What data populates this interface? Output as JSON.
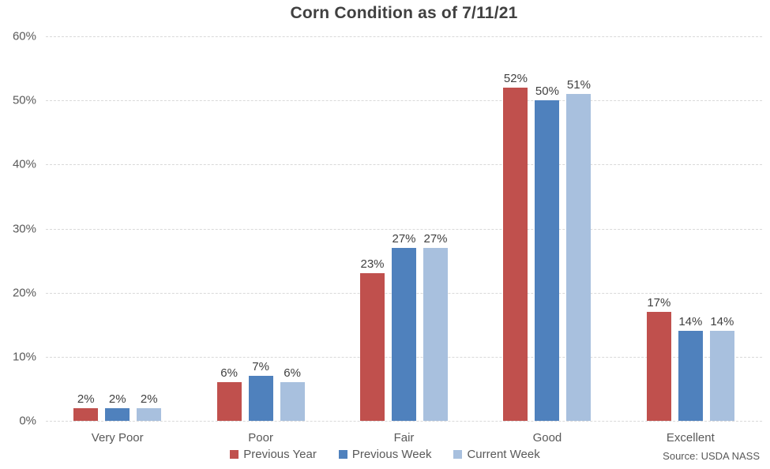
{
  "title": "Corn Condition as of 7/11/21",
  "source": "Source: USDA NASS",
  "colors": {
    "background": "#FFFFFF",
    "title_text": "#404040",
    "data_label_text": "#404040",
    "axis_text": "#595959",
    "gridline": "#D9D9D9",
    "previous_year": "#C0504D",
    "previous_week": "#4F81BD",
    "current_week": "#A8C0DE"
  },
  "chart_data": {
    "type": "bar",
    "title": "Corn Condition as of 7/11/21",
    "categories": [
      "Very Poor",
      "Poor",
      "Fair",
      "Good",
      "Excellent"
    ],
    "series": [
      {
        "name": "Previous Year",
        "color": "#C0504D",
        "values": [
          2,
          6,
          23,
          52,
          17
        ]
      },
      {
        "name": "Previous Week",
        "color": "#4F81BD",
        "values": [
          2,
          7,
          27,
          50,
          14
        ]
      },
      {
        "name": "Current Week",
        "color": "#A8C0DE",
        "values": [
          2,
          6,
          27,
          51,
          14
        ]
      }
    ],
    "value_suffix": "%",
    "xlabel": "",
    "ylabel": "",
    "ylim": [
      0,
      60
    ],
    "ytick_step": 10,
    "ytick_suffix": "%",
    "grid": "horizontal-dashed",
    "legend_position": "bottom-center",
    "data_labels": "above-bars",
    "source": "Source: USDA NASS"
  }
}
